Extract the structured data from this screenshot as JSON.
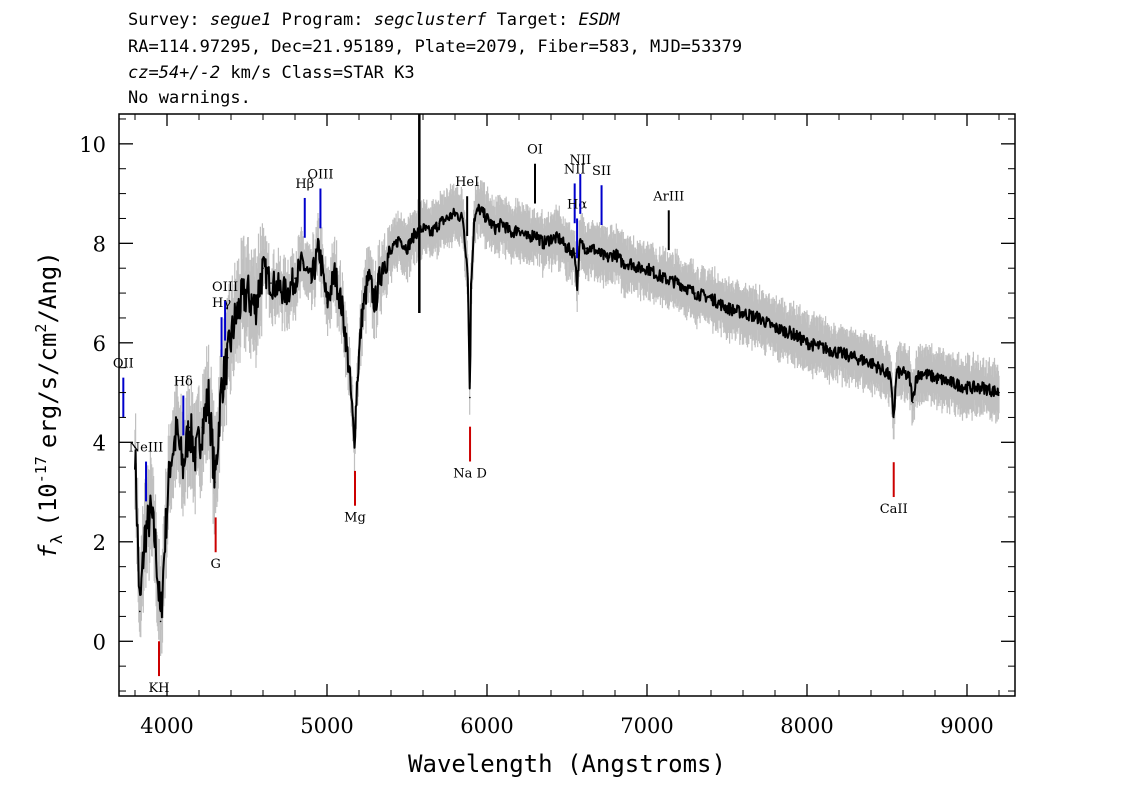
{
  "header": {
    "survey_label": "Survey:",
    "survey": "segue1",
    "program_label": "Program:",
    "program": "segclusterf",
    "target_label": "Target:",
    "target": "ESDM",
    "line2": "RA=114.97295, Dec=21.95189, Plate=2079, Fiber=583, MJD=53379",
    "cz": "cz=54+/-2",
    "cz_rest": "km/s Class=STAR K3",
    "warnings": "No warnings."
  },
  "chart_data": {
    "type": "line",
    "xlabel": "Wavelength (Angstroms)",
    "ylabel_main": "f",
    "ylabel_sub": "λ",
    "ylabel_open": "(10",
    "ylabel_exp": "-17",
    "ylabel_rest": "erg/s/cm",
    "ylabel_exp2": "2",
    "ylabel_close": "/Ang)",
    "xlim": [
      3700,
      9300
    ],
    "ylim": [
      -1.1,
      10.6
    ],
    "xticks": [
      4000,
      5000,
      6000,
      7000,
      8000,
      9000
    ],
    "xtick_labels": [
      "4000",
      "5000",
      "6000",
      "7000",
      "8000",
      "9000"
    ],
    "yticks": [
      0,
      2,
      4,
      6,
      8,
      10
    ],
    "ytick_labels": [
      "0",
      "2",
      "4",
      "6",
      "8",
      "10"
    ],
    "series": [
      {
        "color": "#000000",
        "x": [
          3800,
          3830,
          3860,
          3900,
          3930,
          3960,
          3990,
          4020,
          4060,
          4100,
          4140,
          4180,
          4220,
          4260,
          4300,
          4340,
          4380,
          4420,
          4460,
          4500,
          4550,
          4600,
          4650,
          4700,
          4750,
          4800,
          4850,
          4900,
          4950,
          5000,
          5050,
          5100,
          5140,
          5170,
          5190,
          5220,
          5260,
          5300,
          5350,
          5400,
          5450,
          5500,
          5550,
          5600,
          5650,
          5700,
          5750,
          5800,
          5850,
          5880,
          5893,
          5900,
          5920,
          5950,
          6000,
          6050,
          6100,
          6150,
          6200,
          6250,
          6300,
          6350,
          6400,
          6450,
          6500,
          6550,
          6563,
          6580,
          6620,
          6660,
          6700,
          6750,
          6800,
          6850,
          6900,
          6950,
          7000,
          7100,
          7200,
          7300,
          7400,
          7500,
          7600,
          7700,
          7800,
          7900,
          8000,
          8100,
          8200,
          8300,
          8400,
          8498,
          8520,
          8542,
          8560,
          8600,
          8640,
          8662,
          8680,
          8720,
          8800,
          8900,
          9000,
          9100,
          9200
        ],
        "y": [
          3.9,
          0.6,
          2.1,
          2.6,
          1.9,
          0.4,
          2.2,
          3.6,
          4.2,
          3.5,
          4.3,
          3.7,
          4.3,
          4.9,
          3.2,
          5.1,
          5.7,
          6.4,
          6.8,
          7.0,
          6.7,
          7.5,
          7.2,
          7.1,
          7.0,
          7.3,
          7.6,
          7.2,
          7.9,
          6.8,
          7.4,
          6.6,
          5.4,
          4.0,
          5.3,
          6.6,
          7.3,
          6.8,
          7.6,
          7.8,
          8.1,
          7.9,
          8.2,
          8.3,
          8.2,
          8.4,
          8.5,
          8.6,
          8.5,
          7.4,
          4.9,
          7.1,
          8.5,
          8.7,
          8.5,
          8.3,
          8.4,
          8.2,
          8.3,
          8.1,
          8.2,
          8.0,
          8.1,
          8.1,
          7.9,
          7.8,
          7.1,
          8.0,
          7.9,
          7.9,
          7.8,
          7.7,
          7.8,
          7.6,
          7.6,
          7.5,
          7.5,
          7.3,
          7.2,
          7.0,
          6.9,
          6.7,
          6.6,
          6.5,
          6.3,
          6.2,
          6.0,
          5.9,
          5.8,
          5.7,
          5.6,
          5.4,
          5.3,
          4.5,
          5.4,
          5.4,
          5.3,
          4.8,
          5.3,
          5.4,
          5.3,
          5.2,
          5.1,
          5.1,
          5.0
        ]
      }
    ],
    "noise_color": "#c0c0c0",
    "spike": {
      "x": 5577,
      "y": 10.6
    },
    "emission_lines": [
      {
        "label": "OII",
        "x": 3727,
        "color": "#0000cc"
      },
      {
        "label": "NeIII",
        "x": 3869,
        "color": "#0000cc"
      },
      {
        "label": "Hδ",
        "x": 4102,
        "color": "#0000cc"
      },
      {
        "label": "Hγ",
        "x": 4341,
        "color": "#0000cc"
      },
      {
        "label": "OIII",
        "x": 4363,
        "color": "#0000cc"
      },
      {
        "label": "Hβ",
        "x": 4861,
        "color": "#0000cc"
      },
      {
        "label": "OIII",
        "x": 4959,
        "color": "#0000cc"
      },
      {
        "label": "HeI",
        "x": 5876,
        "color": "#000000"
      },
      {
        "label": "OI",
        "x": 6300,
        "color": "#000000"
      },
      {
        "label": "NII",
        "x": 6548,
        "color": "#0000cc"
      },
      {
        "label": "Hα",
        "x": 6563,
        "color": "#0000cc"
      },
      {
        "label": "NII",
        "x": 6583,
        "color": "#0000cc"
      },
      {
        "label": "SII",
        "x": 6716,
        "color": "#0000cc"
      },
      {
        "label": "ArIII",
        "x": 7136,
        "color": "#000000"
      }
    ],
    "absorption_lines": [
      {
        "label": "KH",
        "x": 3950,
        "color": "#cc0000"
      },
      {
        "label": "G",
        "x": 4304,
        "color": "#cc0000"
      },
      {
        "label": "Mg",
        "x": 5175,
        "color": "#cc0000"
      },
      {
        "label": "Na D",
        "x": 5894,
        "color": "#cc0000"
      },
      {
        "label": "CaII",
        "x": 8542,
        "color": "#cc0000"
      }
    ]
  }
}
